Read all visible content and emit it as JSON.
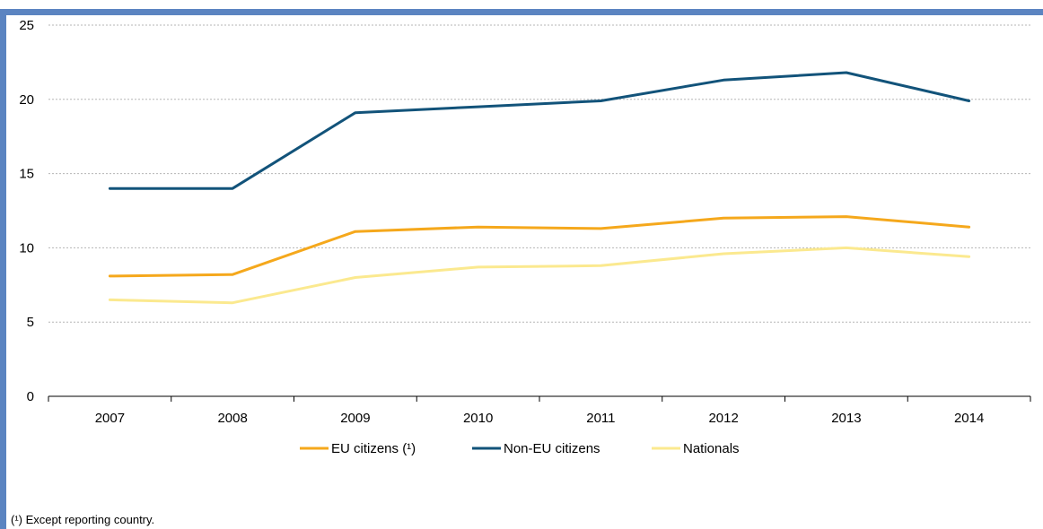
{
  "chart_data": {
    "type": "line",
    "categories": [
      "2007",
      "2008",
      "2009",
      "2010",
      "2011",
      "2012",
      "2013",
      "2014"
    ],
    "ylim": [
      0,
      25
    ],
    "yticks": [
      "0",
      "5",
      "10",
      "15",
      "20",
      "25"
    ],
    "grid": true,
    "legend_position": "bottom",
    "series": [
      {
        "name": "EU citizens (¹)",
        "color": "#f5a81c",
        "values": [
          8.1,
          8.2,
          11.1,
          11.4,
          11.3,
          12.0,
          12.1,
          11.4
        ]
      },
      {
        "name": "Non-EU citizens",
        "color": "#12537a",
        "values": [
          14.0,
          14.0,
          19.1,
          19.5,
          19.9,
          21.3,
          21.8,
          19.9
        ]
      },
      {
        "name": "Nationals",
        "color": "#fbe98f",
        "values": [
          6.5,
          6.3,
          8.0,
          8.7,
          8.8,
          9.6,
          10.0,
          9.4
        ]
      }
    ]
  },
  "footnote": "(¹) Except reporting country."
}
